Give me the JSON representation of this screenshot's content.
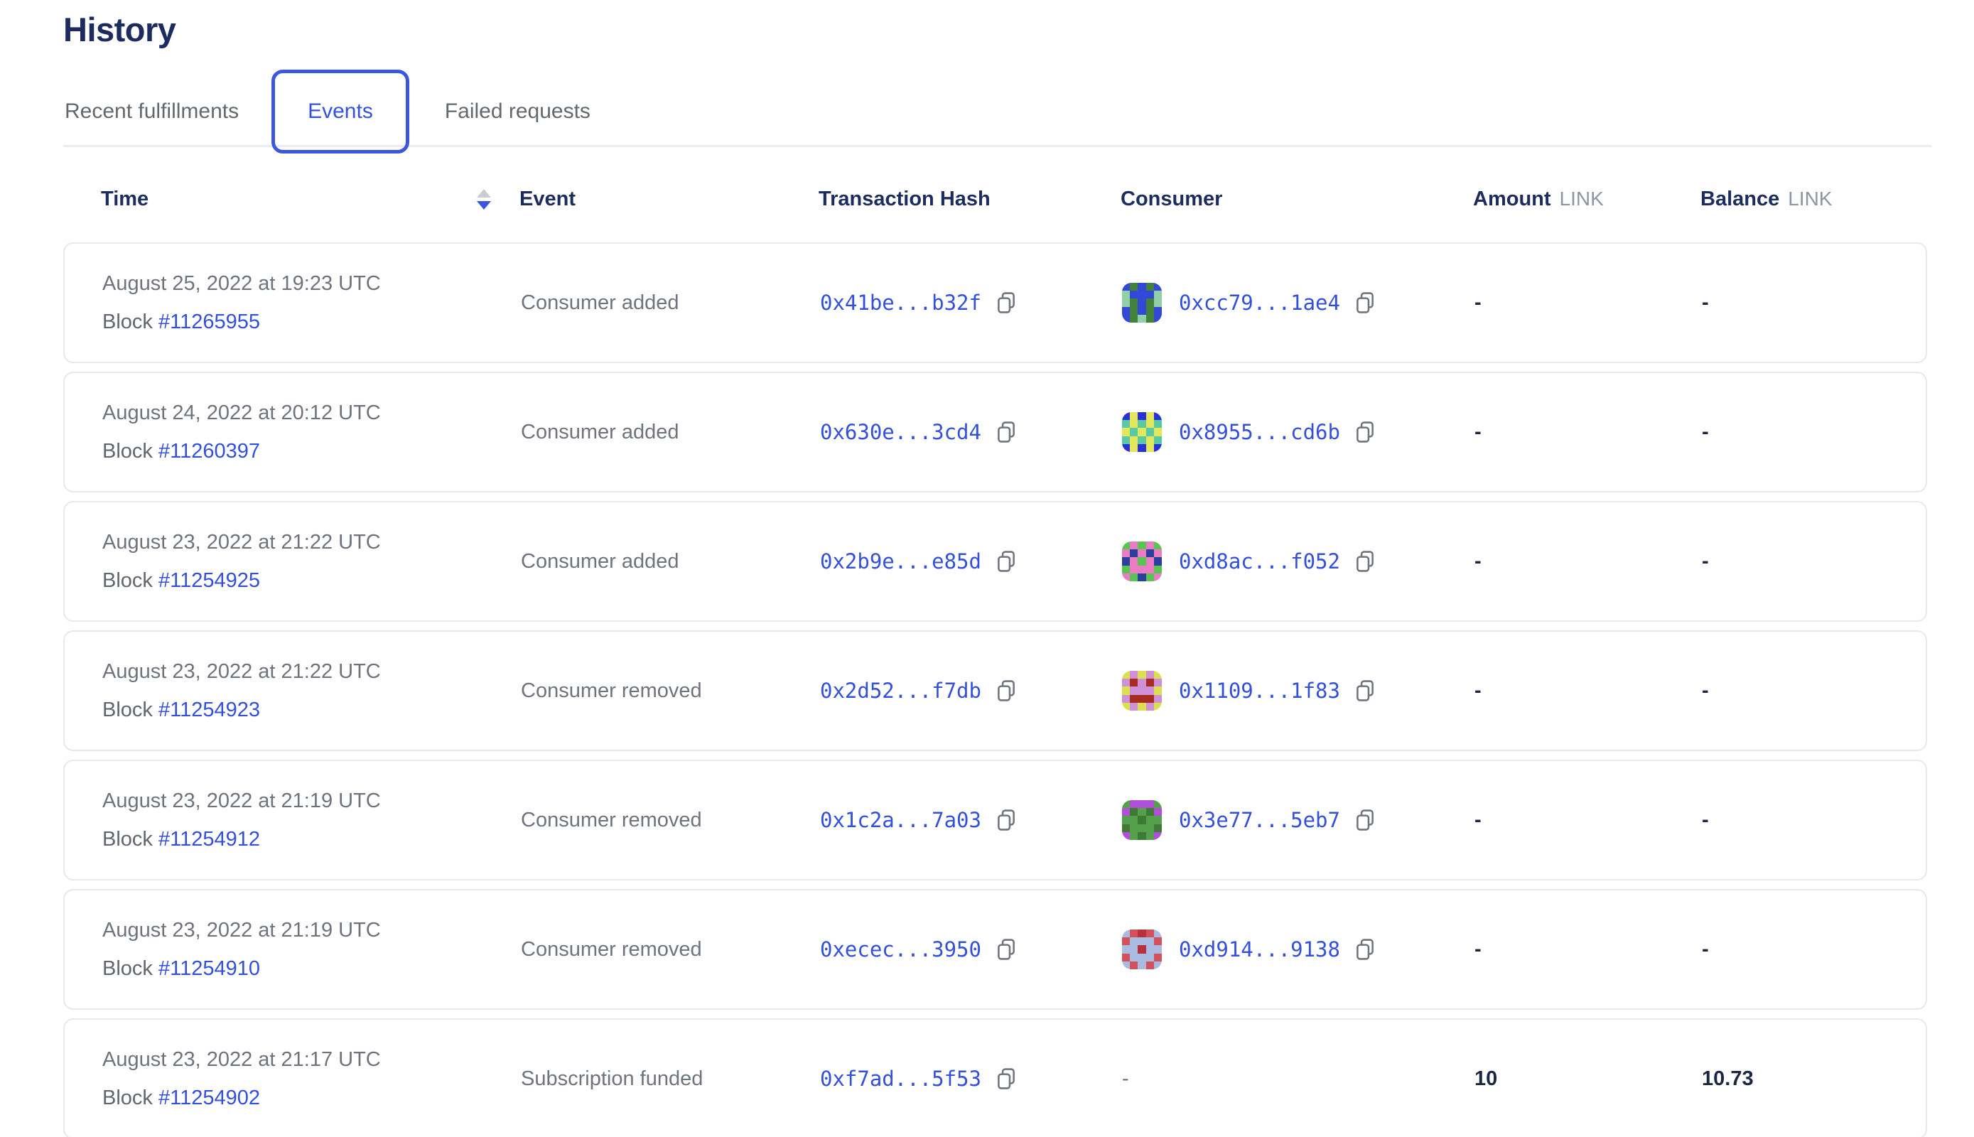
{
  "page": {
    "title": "History"
  },
  "tabs": [
    {
      "label": "Recent fulfillments",
      "active": false
    },
    {
      "label": "Events",
      "active": true
    },
    {
      "label": "Failed requests",
      "active": false
    }
  ],
  "colors": {
    "heading_navy": "#1d2b5e",
    "link_blue": "#3350dc",
    "tab_active_border": "#3b57de",
    "body_gray": "#6e737d",
    "unit_gray": "#8f95a0",
    "sort_up_gray": "#c7cbd3",
    "sort_down_blue": "#3b57de",
    "card_border": "#e9e9ec"
  },
  "table": {
    "block_label": "Block",
    "columns": {
      "time": "Time",
      "event": "Event",
      "tx": "Transaction Hash",
      "consumer": "Consumer",
      "amount": "Amount",
      "balance": "Balance",
      "unit": "LINK"
    },
    "sort": {
      "column": "time",
      "direction": "descending"
    },
    "rows": [
      {
        "time": "August 25, 2022 at 19:23 UTC",
        "block": "#11265955",
        "event": "Consumer added",
        "tx": "0x41be...b32f",
        "consumer": "0xcc79...1ae4",
        "amount": "-",
        "balance": "-",
        "avatar": {
          "bg": "#42813a",
          "c1": "#3448d8",
          "c2": "#90cfa8",
          "pattern": [
            1,
            0,
            1,
            0,
            1,
            2,
            1,
            1,
            1,
            2,
            2,
            0,
            1,
            0,
            2,
            1,
            0,
            1,
            0,
            1,
            1,
            0,
            2,
            0,
            1
          ]
        }
      },
      {
        "time": "August 24, 2022 at 20:12 UTC",
        "block": "#11260397",
        "event": "Consumer added",
        "tx": "0x630e...3cd4",
        "consumer": "0x8955...cd6b",
        "amount": "-",
        "balance": "-",
        "avatar": {
          "bg": "#2b2fd6",
          "c1": "#e3e75c",
          "c2": "#59c9a4",
          "pattern": [
            0,
            1,
            0,
            1,
            0,
            2,
            1,
            2,
            1,
            2,
            1,
            2,
            1,
            2,
            1,
            2,
            1,
            2,
            1,
            2,
            0,
            1,
            0,
            1,
            0
          ]
        }
      },
      {
        "time": "August 23, 2022 at 21:22 UTC",
        "block": "#11254925",
        "event": "Consumer added",
        "tx": "0x2b9e...e85d",
        "consumer": "0xd8ac...f052",
        "amount": "-",
        "balance": "-",
        "avatar": {
          "bg": "#5ac453",
          "c1": "#ea7cc3",
          "c2": "#2b3f9e",
          "pattern": [
            0,
            1,
            0,
            1,
            0,
            1,
            2,
            1,
            2,
            1,
            2,
            1,
            0,
            1,
            2,
            0,
            1,
            1,
            1,
            0,
            1,
            0,
            2,
            0,
            1
          ]
        }
      },
      {
        "time": "August 23, 2022 at 21:22 UTC",
        "block": "#11254923",
        "event": "Consumer removed",
        "tx": "0x2d52...f7db",
        "consumer": "0x1109...1f83",
        "amount": "-",
        "balance": "-",
        "avatar": {
          "bg": "#cf90d8",
          "c1": "#dce04f",
          "c2": "#a62b21",
          "pattern": [
            1,
            0,
            1,
            0,
            1,
            0,
            2,
            0,
            2,
            0,
            1,
            0,
            0,
            0,
            1,
            0,
            2,
            2,
            2,
            0,
            1,
            0,
            1,
            0,
            1
          ]
        }
      },
      {
        "time": "August 23, 2022 at 21:19 UTC",
        "block": "#11254912",
        "event": "Consumer removed",
        "tx": "0x1c2a...7a03",
        "consumer": "0x3e77...5eb7",
        "amount": "-",
        "balance": "-",
        "avatar": {
          "bg": "#55a04c",
          "c1": "#b050d8",
          "c2": "#3d7a36",
          "pattern": [
            0,
            1,
            1,
            1,
            0,
            1,
            2,
            0,
            2,
            1,
            0,
            0,
            2,
            0,
            0,
            2,
            0,
            0,
            0,
            2,
            1,
            0,
            2,
            0,
            1
          ]
        }
      },
      {
        "time": "August 23, 2022 at 21:19 UTC",
        "block": "#11254910",
        "event": "Consumer removed",
        "tx": "0xecec...3950",
        "consumer": "0xd914...9138",
        "amount": "-",
        "balance": "-",
        "avatar": {
          "bg": "#d2525c",
          "c1": "#aabbe2",
          "c2": "#b8313c",
          "pattern": [
            1,
            0,
            2,
            0,
            1,
            0,
            1,
            1,
            1,
            0,
            1,
            1,
            2,
            1,
            1,
            0,
            1,
            1,
            1,
            0,
            1,
            0,
            1,
            0,
            1
          ]
        }
      },
      {
        "time": "August 23, 2022 at 21:17 UTC",
        "block": "#11254902",
        "event": "Subscription funded",
        "tx": "0xf7ad...5f53",
        "consumer": "-",
        "amount": "10",
        "balance": "10.73",
        "avatar": null
      }
    ]
  }
}
